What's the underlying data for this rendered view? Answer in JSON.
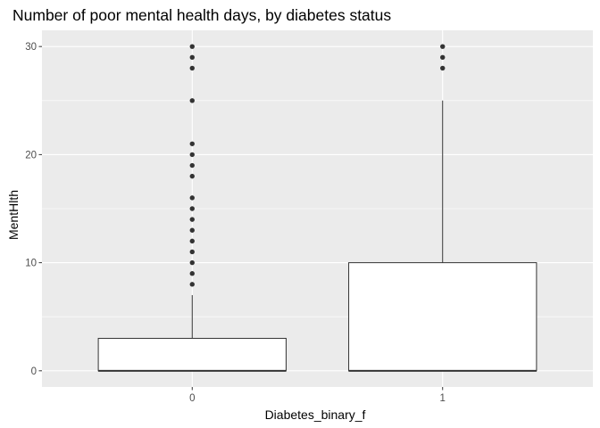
{
  "chart_data": {
    "type": "box",
    "title": "Number of poor mental health days, by diabetes status",
    "xlabel": "Diabetes_binary_f",
    "ylabel": "MentHlth",
    "categories": [
      "0",
      "1"
    ],
    "ylim": [
      -1.5,
      31.5
    ],
    "yticks": [
      0,
      10,
      20,
      30
    ],
    "grid": true,
    "boxes": [
      {
        "category": "0",
        "min": 0,
        "q1": 0,
        "median": 0,
        "q3": 3,
        "max": 7,
        "outliers": [
          8,
          9,
          10,
          11,
          12,
          13,
          14,
          15,
          16,
          18,
          19,
          20,
          21,
          25,
          28,
          29,
          30
        ]
      },
      {
        "category": "1",
        "min": 0,
        "q1": 0,
        "median": 0,
        "q3": 10,
        "max": 25,
        "outliers": [
          28,
          29,
          30
        ]
      }
    ],
    "colors": {
      "panel": "#ebebeb",
      "grid": "#ffffff",
      "box_fill": "#ffffff",
      "box_line": "#333333",
      "point": "#333333"
    }
  }
}
